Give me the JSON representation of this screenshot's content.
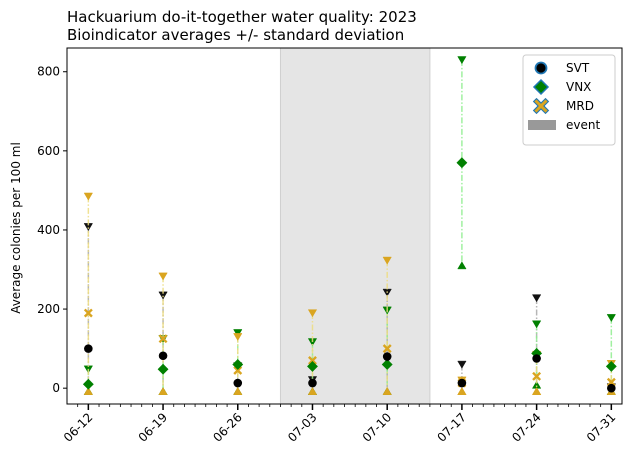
{
  "chart_data": {
    "type": "scatter",
    "title": "Hackuarium do-it-together water quality: 2023",
    "subtitle": "Bioindicator averages +/- standard deviation",
    "xlabel": "",
    "ylabel": "Average colonies per 100 ml",
    "categories": [
      "06-12",
      "06-19",
      "06-26",
      "07-03",
      "07-10",
      "07-17",
      "07-24",
      "07-31"
    ],
    "x_dates": [
      "2023-06-12",
      "2023-06-19",
      "2023-06-26",
      "2023-07-03",
      "2023-07-10",
      "2023-07-17",
      "2023-07-24",
      "2023-07-31"
    ],
    "xlim": [
      "2023-06-10",
      "2023-08-01"
    ],
    "ylim": [
      -40,
      860
    ],
    "yticks": [
      0,
      200,
      400,
      600,
      800
    ],
    "grid": false,
    "legend_position": "top-right",
    "event": {
      "label": "event",
      "start": "2023-06-30",
      "end": "2023-07-14",
      "color": "#999999"
    },
    "series": [
      {
        "name": "SVT",
        "marker": "circle",
        "color": "#000000",
        "edge_color": "#1f77b4",
        "line_color": "#aaaaaa",
        "values": [
          100,
          82,
          13,
          13,
          80,
          13,
          75,
          0
        ],
        "upper": [
          408,
          235,
          56,
          21,
          242,
          60,
          228,
          3
        ],
        "lower": [
          -8,
          -8,
          -8,
          -8,
          -8,
          -8,
          -8,
          -8
        ]
      },
      {
        "name": "VNX",
        "marker": "diamond",
        "color": "#008000",
        "edge_color": "#1f77b4",
        "line_color": "#90ee90",
        "values": [
          10,
          48,
          60,
          55,
          60,
          570,
          88,
          55
        ],
        "upper": [
          48,
          125,
          140,
          117,
          197,
          830,
          162,
          178
        ],
        "lower": [
          -8,
          -8,
          -8,
          -8,
          -8,
          310,
          8,
          -8
        ]
      },
      {
        "name": "MRD",
        "marker": "x",
        "color": "#daa520",
        "edge_color": "#1f77b4",
        "line_color": "#eedd82",
        "values": [
          190,
          125,
          45,
          70,
          100,
          13,
          30,
          15
        ],
        "upper": [
          485,
          283,
          130,
          190,
          323,
          20,
          85,
          62
        ],
        "lower": [
          -8,
          -8,
          -8,
          -8,
          -8,
          -8,
          -8,
          -8
        ]
      }
    ]
  }
}
